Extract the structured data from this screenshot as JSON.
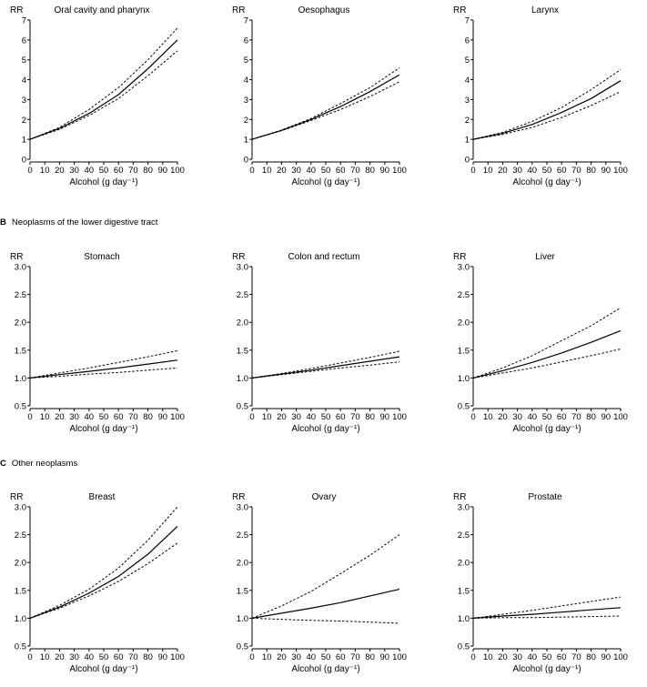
{
  "sections": [
    {
      "letter": "",
      "title": ""
    },
    {
      "letter": "B",
      "title": "Neoplasms of the lower digestive tract"
    },
    {
      "letter": "C",
      "title": "Other neoplasms"
    }
  ],
  "colors": {
    "line": "#000000",
    "background": "#ffffff"
  },
  "chart_data": [
    {
      "type": "line",
      "title": "Oral cavity and pharynx",
      "xlabel": "Alcohol (g day⁻¹)",
      "ylabel": "RR",
      "xlim": [
        0,
        100
      ],
      "ylim": [
        0,
        7
      ],
      "xticks": [
        0,
        10,
        20,
        30,
        40,
        50,
        60,
        70,
        80,
        90,
        100
      ],
      "yticks": [
        0,
        1,
        2,
        3,
        4,
        5,
        6,
        7
      ],
      "x": [
        0,
        20,
        40,
        60,
        80,
        100
      ],
      "series": [
        {
          "role": "estimate",
          "values": [
            1.0,
            1.55,
            2.3,
            3.25,
            4.55,
            6.0
          ]
        },
        {
          "role": "upper-ci",
          "values": [
            1.0,
            1.6,
            2.5,
            3.6,
            5.0,
            6.6
          ]
        },
        {
          "role": "lower-ci",
          "values": [
            1.0,
            1.5,
            2.2,
            3.05,
            4.2,
            5.45
          ]
        }
      ]
    },
    {
      "type": "line",
      "title": "Oesophagus",
      "xlabel": "Alcohol (g day⁻¹)",
      "ylabel": "RR",
      "xlim": [
        0,
        100
      ],
      "ylim": [
        0,
        7
      ],
      "xticks": [
        0,
        10,
        20,
        30,
        40,
        50,
        60,
        70,
        80,
        90,
        100
      ],
      "yticks": [
        0,
        1,
        2,
        3,
        4,
        5,
        6,
        7
      ],
      "x": [
        0,
        20,
        40,
        60,
        80,
        100
      ],
      "series": [
        {
          "role": "estimate",
          "values": [
            1.0,
            1.45,
            2.0,
            2.65,
            3.4,
            4.25
          ]
        },
        {
          "role": "upper-ci",
          "values": [
            1.0,
            1.47,
            2.05,
            2.8,
            3.6,
            4.6
          ]
        },
        {
          "role": "lower-ci",
          "values": [
            1.0,
            1.43,
            1.95,
            2.5,
            3.15,
            3.9
          ]
        }
      ]
    },
    {
      "type": "line",
      "title": "Larynx",
      "xlabel": "Alcohol (g day⁻¹)",
      "ylabel": "RR",
      "xlim": [
        0,
        100
      ],
      "ylim": [
        0,
        7
      ],
      "xticks": [
        0,
        10,
        20,
        30,
        40,
        50,
        60,
        70,
        80,
        90,
        100
      ],
      "yticks": [
        0,
        1,
        2,
        3,
        4,
        5,
        6,
        7
      ],
      "x": [
        0,
        20,
        40,
        60,
        80,
        100
      ],
      "series": [
        {
          "role": "estimate",
          "values": [
            1.0,
            1.3,
            1.75,
            2.35,
            3.05,
            3.95
          ]
        },
        {
          "role": "upper-ci",
          "values": [
            1.0,
            1.35,
            1.9,
            2.6,
            3.5,
            4.5
          ]
        },
        {
          "role": "lower-ci",
          "values": [
            1.0,
            1.25,
            1.6,
            2.1,
            2.7,
            3.4
          ]
        }
      ]
    },
    {
      "type": "line",
      "title": "Stomach",
      "xlabel": "Alcohol (g day⁻¹)",
      "ylabel": "RR",
      "xlim": [
        0,
        100
      ],
      "ylim": [
        0.5,
        3.0
      ],
      "xticks": [
        0,
        10,
        20,
        30,
        40,
        50,
        60,
        70,
        80,
        90,
        100
      ],
      "yticks": [
        0.5,
        1.0,
        1.5,
        2.0,
        2.5,
        3.0
      ],
      "x": [
        0,
        20,
        40,
        60,
        80,
        100
      ],
      "series": [
        {
          "role": "estimate",
          "values": [
            1.0,
            1.06,
            1.12,
            1.18,
            1.25,
            1.32
          ]
        },
        {
          "role": "upper-ci",
          "values": [
            1.0,
            1.09,
            1.18,
            1.28,
            1.38,
            1.49
          ]
        },
        {
          "role": "lower-ci",
          "values": [
            1.0,
            1.03,
            1.07,
            1.1,
            1.14,
            1.18
          ]
        }
      ]
    },
    {
      "type": "line",
      "title": "Colon and rectum",
      "xlabel": "Alcohol (g day⁻¹)",
      "ylabel": "RR",
      "xlim": [
        0,
        100
      ],
      "ylim": [
        0.5,
        3.0
      ],
      "xticks": [
        0,
        10,
        20,
        30,
        40,
        50,
        60,
        70,
        80,
        90,
        100
      ],
      "yticks": [
        0.5,
        1.0,
        1.5,
        2.0,
        2.5,
        3.0
      ],
      "x": [
        0,
        20,
        40,
        60,
        80,
        100
      ],
      "series": [
        {
          "role": "estimate",
          "values": [
            1.0,
            1.07,
            1.14,
            1.22,
            1.3,
            1.38
          ]
        },
        {
          "role": "upper-ci",
          "values": [
            1.0,
            1.08,
            1.17,
            1.27,
            1.37,
            1.48
          ]
        },
        {
          "role": "lower-ci",
          "values": [
            1.0,
            1.06,
            1.12,
            1.18,
            1.23,
            1.29
          ]
        }
      ]
    },
    {
      "type": "line",
      "title": "Liver",
      "xlabel": "Alcohol (g day⁻¹)",
      "ylabel": "RR",
      "xlim": [
        0,
        100
      ],
      "ylim": [
        0.5,
        3.0
      ],
      "xticks": [
        0,
        10,
        20,
        30,
        40,
        50,
        60,
        70,
        80,
        90,
        100
      ],
      "yticks": [
        0.5,
        1.0,
        1.5,
        2.0,
        2.5,
        3.0
      ],
      "x": [
        0,
        20,
        40,
        60,
        80,
        100
      ],
      "series": [
        {
          "role": "estimate",
          "values": [
            1.0,
            1.13,
            1.28,
            1.45,
            1.64,
            1.85
          ]
        },
        {
          "role": "upper-ci",
          "values": [
            1.0,
            1.18,
            1.4,
            1.67,
            1.94,
            2.26
          ]
        },
        {
          "role": "lower-ci",
          "values": [
            1.0,
            1.09,
            1.18,
            1.29,
            1.4,
            1.52
          ]
        }
      ]
    },
    {
      "type": "line",
      "title": "Breast",
      "xlabel": "Alcohol (g day⁻¹)",
      "ylabel": "RR",
      "xlim": [
        0,
        100
      ],
      "ylim": [
        0.5,
        3.0
      ],
      "xticks": [
        0,
        10,
        20,
        30,
        40,
        50,
        60,
        70,
        80,
        90,
        100
      ],
      "yticks": [
        0.5,
        1.0,
        1.5,
        2.0,
        2.5,
        3.0
      ],
      "x": [
        0,
        20,
        40,
        60,
        80,
        100
      ],
      "series": [
        {
          "role": "estimate",
          "values": [
            1.0,
            1.2,
            1.45,
            1.75,
            2.15,
            2.65
          ]
        },
        {
          "role": "upper-ci",
          "values": [
            1.0,
            1.23,
            1.52,
            1.9,
            2.4,
            3.0
          ]
        },
        {
          "role": "lower-ci",
          "values": [
            1.0,
            1.18,
            1.4,
            1.66,
            1.98,
            2.35
          ]
        }
      ]
    },
    {
      "type": "line",
      "title": "Ovary",
      "xlabel": "Alcohol (g day⁻¹)",
      "ylabel": "RR",
      "xlim": [
        0,
        100
      ],
      "ylim": [
        0.5,
        3.0
      ],
      "xticks": [
        0,
        10,
        20,
        30,
        40,
        50,
        60,
        70,
        80,
        90,
        100
      ],
      "yticks": [
        0.5,
        1.0,
        1.5,
        2.0,
        2.5,
        3.0
      ],
      "x": [
        0,
        20,
        40,
        60,
        80,
        100
      ],
      "series": [
        {
          "role": "estimate",
          "values": [
            1.0,
            1.09,
            1.18,
            1.28,
            1.4,
            1.52
          ]
        },
        {
          "role": "upper-ci",
          "values": [
            1.0,
            1.22,
            1.48,
            1.8,
            2.13,
            2.5
          ]
        },
        {
          "role": "lower-ci",
          "values": [
            1.0,
            0.98,
            0.96,
            0.95,
            0.93,
            0.91
          ]
        }
      ]
    },
    {
      "type": "line",
      "title": "Prostate",
      "xlabel": "Alcohol (g day⁻¹)",
      "ylabel": "RR",
      "xlim": [
        0,
        100
      ],
      "ylim": [
        0.5,
        3.0
      ],
      "xticks": [
        0,
        10,
        20,
        30,
        40,
        50,
        60,
        70,
        80,
        90,
        100
      ],
      "yticks": [
        0.5,
        1.0,
        1.5,
        2.0,
        2.5,
        3.0
      ],
      "x": [
        0,
        20,
        40,
        60,
        80,
        100
      ],
      "series": [
        {
          "role": "estimate",
          "values": [
            1.0,
            1.04,
            1.07,
            1.11,
            1.15,
            1.19
          ]
        },
        {
          "role": "upper-ci",
          "values": [
            1.0,
            1.07,
            1.14,
            1.22,
            1.3,
            1.38
          ]
        },
        {
          "role": "lower-ci",
          "values": [
            1.0,
            1.01,
            1.01,
            1.02,
            1.03,
            1.04
          ]
        }
      ]
    }
  ]
}
